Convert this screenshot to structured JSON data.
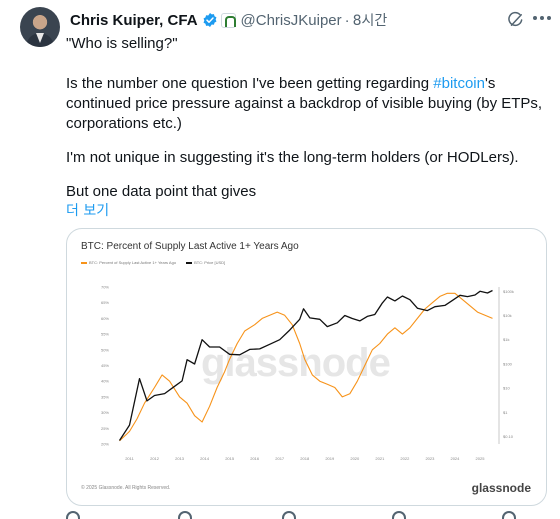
{
  "tweet": {
    "display_name": "Chris Kuiper, CFA",
    "handle": "@ChrisJKuiper",
    "separator": "·",
    "time": "8시간",
    "body": {
      "p1": "\"Who is selling?\"",
      "p2_before": "Is the number one question I've been getting regarding ",
      "p2_hashtag": "#bitcoin",
      "p2_after": "'s continued price pressure against a backdrop of visible buying (by ETPs, corporations etc.)",
      "p3": "I'm not unique in suggesting it's the long-term holders (or HODLers).",
      "p4": "But one data point that gives"
    },
    "show_more": "더 보기"
  },
  "colors": {
    "accent": "#1d9bf0",
    "text": "#0f1419",
    "muted": "#536471",
    "supply_series": "#f7931a",
    "price_series": "#111111"
  },
  "icons": [
    "verified-badge-icon",
    "org-badge-icon",
    "grok-icon",
    "more-icon"
  ],
  "media": {
    "brand": "glassnode",
    "watermark": "glassnode",
    "copyright": "© 2025 Glassnode. All Rights Reserved."
  },
  "chart_data": {
    "type": "line",
    "title": "BTC: Percent of Supply Last Active 1+ Years Ago",
    "legend": [
      "BTC: Percent of Supply Last Active 1+ Years Ago",
      "BTC: Price [USD]"
    ],
    "x_ticks": [
      "2011",
      "2012",
      "2013",
      "2014",
      "2015",
      "2016",
      "2017",
      "2018",
      "2019",
      "2020",
      "2021",
      "2022",
      "2023",
      "2024",
      "2025"
    ],
    "y_left_ticks": [
      "20%",
      "25%",
      "30%",
      "35%",
      "40%",
      "45%",
      "50%",
      "55%",
      "60%",
      "65%",
      "70%"
    ],
    "y_left_range": [
      20,
      70
    ],
    "y_right_ticks": [
      "$0.10",
      "$1",
      "$10",
      "$100",
      "$1k",
      "$10k",
      "$100k"
    ],
    "y_right_scale": "log",
    "legend_position": "top-left",
    "grid": false,
    "series": [
      {
        "name": "BTC: Percent of Supply Last Active 1+ Years Ago",
        "color": "#f7931a",
        "x": [
          2010.6,
          2011.0,
          2011.3,
          2011.6,
          2012.0,
          2012.3,
          2012.6,
          2013.0,
          2013.3,
          2013.6,
          2013.9,
          2014.2,
          2014.5,
          2014.8,
          2015.0,
          2015.3,
          2015.6,
          2016.0,
          2016.3,
          2016.6,
          2016.9,
          2017.2,
          2017.5,
          2017.8,
          2018.0,
          2018.3,
          2018.6,
          2018.9,
          2019.2,
          2019.5,
          2019.8,
          2020.1,
          2020.4,
          2020.7,
          2021.0,
          2021.3,
          2021.6,
          2021.9,
          2022.2,
          2022.5,
          2022.8,
          2023.1,
          2023.4,
          2023.7,
          2024.0,
          2024.3,
          2024.6,
          2024.9,
          2025.2,
          2025.5
        ],
        "y": [
          21,
          24,
          28,
          33,
          38,
          42,
          40,
          35,
          33,
          29,
          27,
          32,
          38,
          43,
          47,
          52,
          56,
          58,
          60,
          61,
          62,
          61,
          58,
          52,
          47,
          42,
          40,
          39,
          38,
          35,
          36,
          40,
          45,
          50,
          52,
          55,
          57,
          55,
          57,
          60,
          63,
          65,
          67,
          68,
          68,
          66,
          64,
          62,
          61,
          60
        ]
      },
      {
        "name": "BTC: Price [USD]",
        "color": "#111111",
        "x": [
          2010.6,
          2011.0,
          2011.4,
          2011.7,
          2012.0,
          2012.4,
          2012.8,
          2013.1,
          2013.3,
          2013.6,
          2013.9,
          2014.2,
          2014.6,
          2015.0,
          2015.4,
          2015.8,
          2016.2,
          2016.6,
          2017.0,
          2017.4,
          2017.8,
          2017.95,
          2018.2,
          2018.6,
          2018.9,
          2019.3,
          2019.6,
          2019.9,
          2020.2,
          2020.5,
          2020.8,
          2021.1,
          2021.3,
          2021.6,
          2021.9,
          2022.2,
          2022.5,
          2022.9,
          2023.2,
          2023.6,
          2023.9,
          2024.2,
          2024.5,
          2024.8,
          2025.0,
          2025.3,
          2025.5
        ],
        "y": [
          0.07,
          0.3,
          25,
          3,
          5,
          6,
          12,
          20,
          150,
          100,
          1000,
          500,
          500,
          250,
          240,
          400,
          420,
          650,
          1000,
          2500,
          7000,
          19000,
          8000,
          7000,
          3500,
          5000,
          10000,
          7500,
          6000,
          9200,
          11000,
          33000,
          58000,
          40000,
          64000,
          45000,
          20000,
          16000,
          23000,
          26000,
          42000,
          68000,
          60000,
          70000,
          100000,
          85000,
          108000
        ]
      }
    ]
  }
}
